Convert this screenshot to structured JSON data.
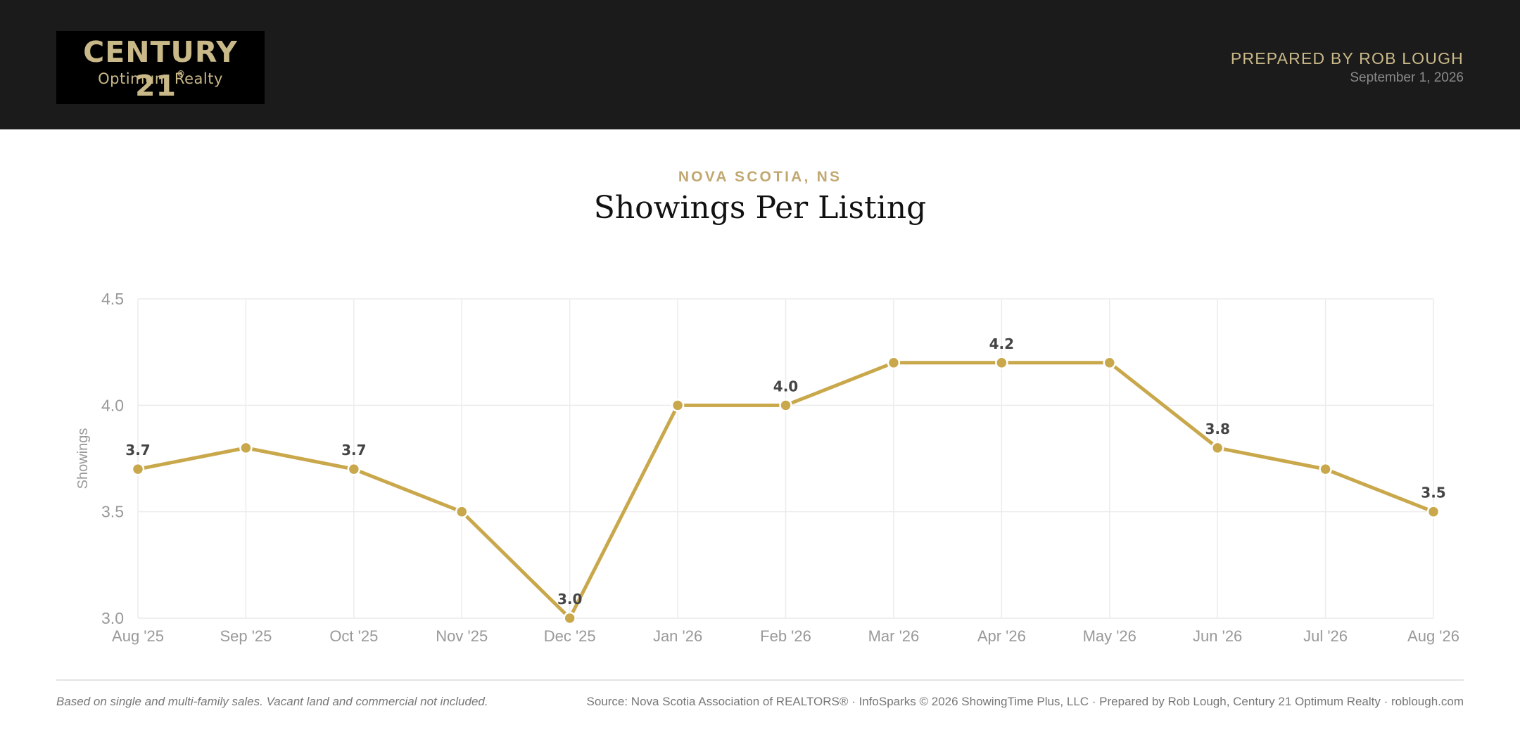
{
  "header": {
    "brand": "CENTURY 21",
    "brand_mark": "®",
    "brand_sub": "Optimum Realty",
    "prepared_by": "PREPARED BY ROB LOUGH",
    "date": "September 1, 2026"
  },
  "report": {
    "region": "NOVA SCOTIA, NS",
    "title": "Showings Per Listing"
  },
  "footer": {
    "note": "Based on single and multi-family sales. Vacant land and commercial not included.",
    "source": "Source: Nova Scotia Association of REALTORS® · InfoSparks © 2026 ShowingTime Plus, LLC · Prepared by Rob Lough, Century 21 Optimum Realty · roblough.com"
  },
  "colors": {
    "accent": "#c9a84c",
    "header_bg": "#1b1b1b",
    "brand_gold": "#c9b888"
  },
  "chart_data": {
    "type": "line",
    "title": "Showings Per Listing",
    "xlabel": "",
    "ylabel": "Showings",
    "categories": [
      "Aug '25",
      "Sep '25",
      "Oct '25",
      "Nov '25",
      "Dec '25",
      "Jan '26",
      "Feb '26",
      "Mar '26",
      "Apr '26",
      "May '26",
      "Jun '26",
      "Jul '26",
      "Aug '26"
    ],
    "series": [
      {
        "values": [
          3.7,
          3.8,
          3.7,
          3.5,
          3.0,
          4.0,
          4.0,
          4.2,
          4.2,
          4.2,
          3.8,
          3.7,
          3.5
        ]
      }
    ],
    "data_labels": [
      {
        "index": 0,
        "text": "3.7"
      },
      {
        "index": 2,
        "text": "3.7"
      },
      {
        "index": 4,
        "text": "3.0"
      },
      {
        "index": 6,
        "text": "4.0"
      },
      {
        "index": 8,
        "text": "4.2"
      },
      {
        "index": 10,
        "text": "3.8"
      },
      {
        "index": 12,
        "text": "3.5"
      }
    ],
    "yticks": [
      "3.0",
      "3.5",
      "4.0",
      "4.5"
    ],
    "ylim": [
      3.0,
      4.5
    ],
    "grid": true,
    "legend": "none"
  }
}
